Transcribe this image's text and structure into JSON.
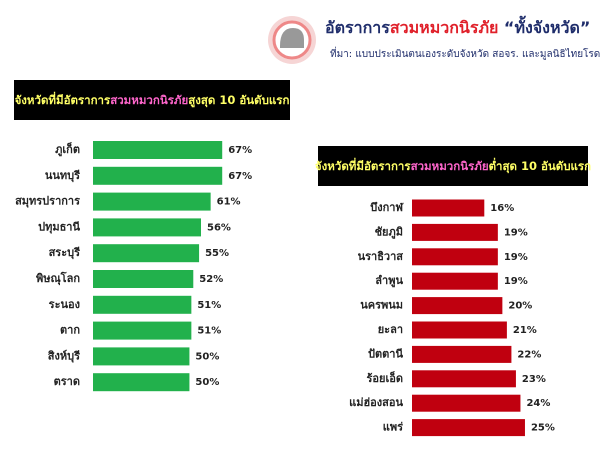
{
  "header": {
    "title": [
      {
        "text": "อัตราการ",
        "color": "#1f2d6b"
      },
      {
        "text": "สวมหมวกนิรภัย",
        "color": "#e0202a"
      },
      {
        "text": " “ทั้งจังหวัด”",
        "color": "#1f2d6b"
      }
    ],
    "source": "ที่มา: แบบประเมินตนเองระดับจังหวัด สอจร. และมูลนิธิไทยโรดส์"
  },
  "chart_data": [
    {
      "type": "barh",
      "title": [
        {
          "text": "จังหวัดที่มีอัตราการ",
          "color": "#ffff66"
        },
        {
          "text": "สวมหมวกนิรภัย",
          "color": "#ff66cc"
        },
        {
          "text": "สูงสุด 10 อันดับแรก",
          "color": "#ffff66"
        }
      ],
      "categories": [
        "ภูเก็ต",
        "นนทบุรี",
        "สมุทรปราการ",
        "ปทุมธานี",
        "สระบุรี",
        "พิษณุโลก",
        "ระนอง",
        "ตาก",
        "สิงห์บุรี",
        "ตราด"
      ],
      "values": [
        67,
        67,
        61,
        56,
        55,
        52,
        51,
        51,
        50,
        50
      ],
      "value_labels": [
        "67%",
        "67%",
        "61%",
        "56%",
        "55%",
        "52%",
        "51%",
        "51%",
        "50%",
        "50%"
      ],
      "color": "#22b14c",
      "xlim": [
        0,
        70
      ]
    },
    {
      "type": "barh",
      "title": [
        {
          "text": "จังหวัดที่มีอัตราการ",
          "color": "#ffff66"
        },
        {
          "text": "สวมหมวกนิรภัย",
          "color": "#ff66cc"
        },
        {
          "text": "ต่ำสุด 10 อันดับแรก",
          "color": "#ffff66"
        }
      ],
      "categories": [
        "บึงกาฬ",
        "ชัยภูมิ",
        "นราธิวาส",
        "ลำพูน",
        "นครพนม",
        "ยะลา",
        "ปัตตานี",
        "ร้อยเอ็ด",
        "แม่ฮ่องสอน",
        "แพร่"
      ],
      "values": [
        16,
        19,
        19,
        19,
        20,
        21,
        22,
        23,
        24,
        25
      ],
      "value_labels": [
        "16%",
        "19%",
        "19%",
        "19%",
        "20%",
        "21%",
        "22%",
        "23%",
        "24%",
        "25%"
      ],
      "color": "#c0000f",
      "xlim": [
        0,
        27
      ]
    }
  ]
}
